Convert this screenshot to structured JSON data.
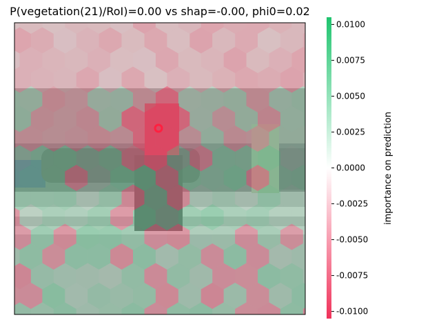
{
  "chart_data": {
    "type": "heatmap",
    "title": "P(vegetation(21)/RoI)=0.00 vs shap=-0.00, phi0=0.02",
    "colorbar": {
      "label": "importance on prediction",
      "range": [
        -0.0105,
        0.0105
      ],
      "ticks": [
        "-0.0100",
        "-0.0075",
        "-0.0050",
        "-0.0025",
        "0.0000",
        "0.0025",
        "0.0050",
        "0.0075",
        "0.0100"
      ],
      "tick_values": [
        -0.01,
        -0.0075,
        -0.005,
        -0.0025,
        0.0,
        0.0025,
        0.005,
        0.0075,
        0.01
      ],
      "colors": {
        "negative": "#f0325a",
        "zero": "#ffffff",
        "positive": "#1ec46e"
      }
    },
    "overlay": {
      "shape": "hexagon",
      "marker": "roi-circle",
      "marker_color": "#ff2040"
    },
    "xticks": [],
    "yticks": []
  }
}
